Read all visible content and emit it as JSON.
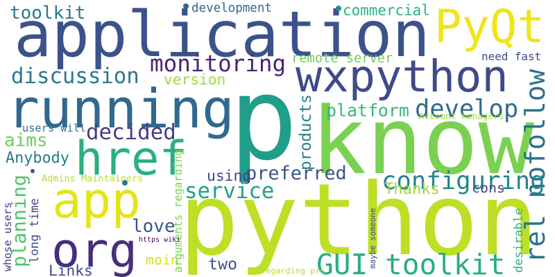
{
  "palette": {
    "dark_purple": "#440154",
    "indigo": "#3e4a89",
    "blue": "#31688e",
    "teal_blue": "#26828e",
    "teal": "#21918c",
    "green_teal": "#1f9e89",
    "green": "#35b779",
    "light_green": "#6ece58",
    "lime": "#b5de2b",
    "yellow": "#fde725"
  },
  "words": [
    {
      "text": "p",
      "color": "#1f9e89",
      "orientation": "horizontal"
    },
    {
      "text": "python",
      "color": "#bddf26",
      "orientation": "horizontal"
    },
    {
      "text": "know",
      "color": "#7ad151",
      "orientation": "horizontal"
    },
    {
      "text": "application",
      "color": "#3b528b",
      "orientation": "horizontal"
    },
    {
      "text": "running",
      "color": "#31688e",
      "orientation": "horizontal"
    },
    {
      "text": "wxpython",
      "color": "#3e4a89",
      "orientation": "horizontal"
    },
    {
      "text": "href",
      "color": "#2ab07f",
      "orientation": "horizontal"
    },
    {
      "text": "app",
      "color": "#e5e419",
      "orientation": "horizontal"
    },
    {
      "text": "org",
      "color": "#472d7b",
      "orientation": "horizontal"
    },
    {
      "text": "PyQt",
      "color": "#f0e51c",
      "orientation": "horizontal"
    },
    {
      "text": "rel nofollow",
      "color": "#2c728e",
      "orientation": "vertical"
    },
    {
      "text": "GUI toolkit",
      "color": "#27ad81",
      "orientation": "horizontal"
    },
    {
      "text": "configuring",
      "color": "#25848e",
      "orientation": "horizontal"
    },
    {
      "text": "discussion",
      "color": "#2a788e",
      "orientation": "horizontal"
    },
    {
      "text": "monitoring",
      "color": "#482475",
      "orientation": "horizontal"
    },
    {
      "text": "develop",
      "color": "#2f6c8e",
      "orientation": "horizontal"
    },
    {
      "text": "decided",
      "color": "#433e85",
      "orientation": "horizontal"
    },
    {
      "text": "service",
      "color": "#1fa187",
      "orientation": "horizontal"
    },
    {
      "text": "preferred",
      "color": "#3b528b",
      "orientation": "horizontal"
    },
    {
      "text": "platform",
      "color": "#35b779",
      "orientation": "horizontal"
    },
    {
      "text": "planning",
      "color": "#52c569",
      "orientation": "vertical"
    },
    {
      "text": "toolkit",
      "color": "#2a788e",
      "orientation": "horizontal"
    },
    {
      "text": "development",
      "color": "#31688e",
      "orientation": "horizontal"
    },
    {
      "text": "commercial",
      "color": "#2ab07f",
      "orientation": "horizontal"
    },
    {
      "text": "aims",
      "color": "#6ece58",
      "orientation": "horizontal"
    },
    {
      "text": "Anybody",
      "color": "#287c8e",
      "orientation": "horizontal"
    },
    {
      "text": "love",
      "color": "#3b528b",
      "orientation": "horizontal"
    },
    {
      "text": "using",
      "color": "#414487",
      "orientation": "horizontal"
    },
    {
      "text": "Thanks",
      "color": "#a0da39",
      "orientation": "horizontal"
    },
    {
      "text": "cons",
      "color": "#404688",
      "orientation": "horizontal"
    },
    {
      "text": "products",
      "color": "#25848e",
      "orientation": "vertical"
    },
    {
      "text": "desirable",
      "color": "#2db27d",
      "orientation": "vertical"
    },
    {
      "text": "need fast",
      "color": "#3e4a89",
      "orientation": "horizontal"
    },
    {
      "text": "version",
      "color": "#a0da39",
      "orientation": "horizontal"
    },
    {
      "text": "two",
      "color": "#3b528b",
      "orientation": "horizontal"
    },
    {
      "text": "moin",
      "color": "#d8e219",
      "orientation": "horizontal"
    },
    {
      "text": "Links",
      "color": "#3e4a89",
      "orientation": "horizontal"
    },
    {
      "text": "whose users",
      "color": "#443983",
      "orientation": "vertical"
    },
    {
      "text": "long time",
      "color": "#3f4889",
      "orientation": "vertical"
    },
    {
      "text": "remote server",
      "color": "#6ece58",
      "orientation": "horizontal"
    },
    {
      "text": "users will",
      "color": "#2c728e",
      "orientation": "horizontal"
    },
    {
      "text": "Admins Maintainers",
      "color": "#b5de2b",
      "orientation": "horizontal"
    },
    {
      "text": "Account managers",
      "color": "#a5db36",
      "orientation": "horizontal"
    },
    {
      "text": "arguments regarding",
      "color": "#7ad151",
      "orientation": "vertical"
    },
    {
      "text": "https wiki",
      "color": "#440154",
      "orientation": "horizontal"
    },
    {
      "text": "maybe someone",
      "color": "#3e4a89",
      "orientation": "vertical"
    },
    {
      "text": "regarding pro",
      "color": "#b5de2b",
      "orientation": "horizontal"
    }
  ],
  "dots": [
    {
      "color": "#31688e"
    },
    {
      "color": "#21918c"
    },
    {
      "color": "#2a788e"
    },
    {
      "color": "#3b528b"
    }
  ]
}
